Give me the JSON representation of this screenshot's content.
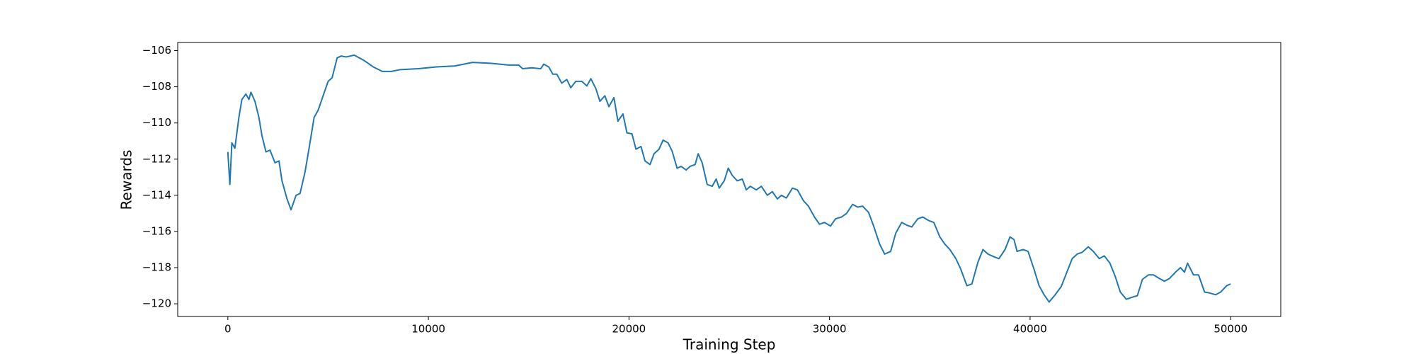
{
  "chart_data": {
    "type": "line",
    "xlabel": "Training Step",
    "ylabel": "Rewards",
    "xlim": [
      -2500,
      52500
    ],
    "ylim": [
      -120.7,
      -105.55
    ],
    "xticks": [
      0,
      10000,
      20000,
      30000,
      40000,
      50000
    ],
    "yticks": [
      {
        "value": -120,
        "label": "−120"
      },
      {
        "value": -118,
        "label": "−118"
      },
      {
        "value": -116,
        "label": "−116"
      },
      {
        "value": -114,
        "label": "−114"
      },
      {
        "value": -112,
        "label": "−112"
      },
      {
        "value": -110,
        "label": "−110"
      },
      {
        "value": -108,
        "label": "−108"
      },
      {
        "value": -106,
        "label": "−106"
      }
    ],
    "grid": false,
    "series": [
      {
        "color": "#1f77b4",
        "x": [
          0,
          100,
          200,
          350,
          550,
          700,
          900,
          1050,
          1150,
          1350,
          1550,
          1700,
          1900,
          2100,
          2350,
          2550,
          2700,
          2950,
          3150,
          3400,
          3600,
          3850,
          4050,
          4300,
          4500,
          4750,
          5000,
          5200,
          5450,
          5650,
          5900,
          6300,
          6800,
          7250,
          7700,
          8150,
          8600,
          9500,
          10400,
          11300,
          12200,
          13100,
          14000,
          14500,
          14700,
          15150,
          15600,
          15750,
          16000,
          16200,
          16400,
          16650,
          16900,
          17100,
          17350,
          17650,
          17900,
          18100,
          18350,
          18550,
          18800,
          19000,
          19250,
          19450,
          19700,
          19900,
          20150,
          20350,
          20600,
          20800,
          21050,
          21250,
          21500,
          21700,
          21950,
          22150,
          22400,
          22600,
          22850,
          23050,
          23300,
          23450,
          23650,
          23900,
          24150,
          24350,
          24500,
          24750,
          24950,
          25150,
          25400,
          25650,
          25850,
          26050,
          26350,
          26600,
          26900,
          27150,
          27400,
          27600,
          27850,
          28150,
          28400,
          28700,
          28950,
          29250,
          29500,
          29750,
          30050,
          30300,
          30600,
          30850,
          31150,
          31400,
          31650,
          31950,
          32200,
          32500,
          32750,
          33050,
          33300,
          33600,
          33850,
          34100,
          34400,
          34650,
          34950,
          35200,
          35500,
          35750,
          36000,
          36300,
          36550,
          36850,
          37100,
          37400,
          37650,
          37900,
          38200,
          38450,
          38750,
          39000,
          39200,
          39350,
          39650,
          39900,
          40200,
          40450,
          40700,
          40950,
          41250,
          41550,
          41800,
          42100,
          42350,
          42600,
          42900,
          43150,
          43450,
          43700,
          43980,
          44250,
          44500,
          44800,
          45050,
          45350,
          45600,
          45900,
          46150,
          46450,
          46700,
          46950,
          47250,
          47500,
          47700,
          47850,
          48150,
          48400,
          48700,
          48950,
          49250,
          49500,
          49800,
          50000
        ],
        "values": [
          -111.6,
          -113.4,
          -111.1,
          -111.4,
          -109.7,
          -108.7,
          -108.4,
          -108.7,
          -108.3,
          -108.8,
          -109.7,
          -110.7,
          -111.6,
          -111.5,
          -112.2,
          -112.1,
          -113.2,
          -114.2,
          -114.8,
          -114.0,
          -113.9,
          -112.7,
          -111.4,
          -109.7,
          -109.3,
          -108.5,
          -107.7,
          -107.5,
          -106.4,
          -106.3,
          -106.35,
          -106.25,
          -106.55,
          -106.9,
          -107.15,
          -107.15,
          -107.05,
          -107.0,
          -106.9,
          -106.85,
          -106.65,
          -106.7,
          -106.8,
          -106.8,
          -107.0,
          -106.95,
          -107.0,
          -106.75,
          -106.9,
          -107.3,
          -107.3,
          -107.8,
          -107.6,
          -108.05,
          -107.7,
          -107.7,
          -107.95,
          -107.55,
          -108.1,
          -108.8,
          -108.5,
          -109.1,
          -108.6,
          -109.9,
          -109.5,
          -110.55,
          -110.6,
          -111.45,
          -111.3,
          -112.1,
          -112.3,
          -111.7,
          -111.45,
          -110.95,
          -111.1,
          -111.55,
          -112.5,
          -112.4,
          -112.6,
          -112.4,
          -112.3,
          -111.7,
          -112.2,
          -113.4,
          -113.5,
          -113.1,
          -113.6,
          -113.2,
          -112.5,
          -112.9,
          -113.2,
          -113.1,
          -113.7,
          -113.5,
          -113.7,
          -113.5,
          -114.0,
          -113.8,
          -114.2,
          -114.0,
          -114.15,
          -113.6,
          -113.7,
          -114.3,
          -114.6,
          -115.2,
          -115.6,
          -115.5,
          -115.7,
          -115.3,
          -115.2,
          -115.0,
          -114.5,
          -114.65,
          -114.6,
          -114.95,
          -115.7,
          -116.7,
          -117.25,
          -117.1,
          -116.1,
          -115.5,
          -115.65,
          -115.75,
          -115.3,
          -115.2,
          -115.4,
          -115.5,
          -116.3,
          -116.7,
          -117.0,
          -117.5,
          -118.1,
          -119.0,
          -118.9,
          -117.7,
          -117.0,
          -117.25,
          -117.4,
          -117.5,
          -117.0,
          -116.3,
          -116.45,
          -117.1,
          -117.0,
          -117.1,
          -118.1,
          -119.0,
          -119.5,
          -119.9,
          -119.5,
          -119.05,
          -118.35,
          -117.5,
          -117.25,
          -117.15,
          -116.85,
          -117.1,
          -117.5,
          -117.35,
          -117.75,
          -118.5,
          -119.35,
          -119.75,
          -119.65,
          -119.55,
          -118.65,
          -118.4,
          -118.4,
          -118.6,
          -118.75,
          -118.6,
          -118.25,
          -118.0,
          -118.25,
          -117.75,
          -118.4,
          -118.4,
          -119.35,
          -119.4,
          -119.5,
          -119.35,
          -119.0,
          -118.9
        ]
      }
    ]
  }
}
